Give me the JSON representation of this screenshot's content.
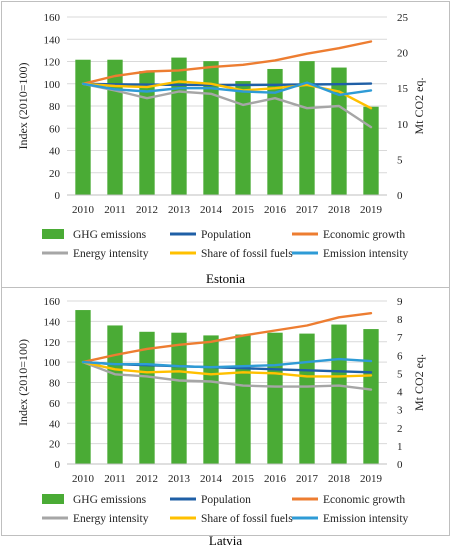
{
  "chart_data": [
    {
      "type": "bar",
      "title": "",
      "caption": "Estonia",
      "categories": [
        "2010",
        "2011",
        "2012",
        "2013",
        "2014",
        "2015",
        "2016",
        "2017",
        "2018",
        "2019"
      ],
      "ylabel_left": "Index (2010=100)",
      "ylabel_right": "Mt CO2 eq.",
      "ylim_left": [
        0,
        160
      ],
      "yticks_left": [
        "0",
        "20",
        "40",
        "60",
        "80",
        "100",
        "120",
        "140",
        "160"
      ],
      "ylim_right": [
        0,
        25
      ],
      "yticks_right": [
        "0",
        "5",
        "10",
        "15",
        "20",
        "25"
      ],
      "grid": true,
      "legend_position": "bottom",
      "bar_series": {
        "name": "GHG emissions",
        "axis": "right",
        "color": "#4aab35",
        "values": [
          19.0,
          19.0,
          17.4,
          19.3,
          18.8,
          16.0,
          17.7,
          18.8,
          17.9,
          12.4
        ]
      },
      "line_series": [
        {
          "name": "Population",
          "color": "#1f5fa6",
          "values": [
            100,
            99.5,
            99.2,
            99.0,
            98.8,
            98.9,
            99.1,
            99.3,
            99.6,
            100.1
          ]
        },
        {
          "name": "Economic growth",
          "color": "#ed7d31",
          "values": [
            100,
            107,
            111,
            112,
            115,
            117,
            121,
            127,
            132,
            138
          ]
        },
        {
          "name": "Energy intensity",
          "color": "#a6a6a6",
          "values": [
            100,
            94,
            87,
            93,
            91,
            81,
            87,
            78,
            80,
            61
          ]
        },
        {
          "name": "Share of fossil fuels",
          "color": "#ffc000",
          "values": [
            100,
            98,
            97,
            102,
            100,
            94,
            96,
            99,
            93,
            78
          ]
        },
        {
          "name": "Emission intensity",
          "color": "#2e9bd6",
          "values": [
            100,
            95,
            93,
            96,
            96,
            93,
            92,
            101,
            90,
            94
          ]
        }
      ]
    },
    {
      "type": "bar",
      "title": "",
      "caption": "Latvia",
      "categories": [
        "2010",
        "2011",
        "2012",
        "2013",
        "2014",
        "2015",
        "2016",
        "2017",
        "2018",
        "2019"
      ],
      "ylabel_left": "Index (2010=100)",
      "ylabel_right": "Mt CO2 eq.",
      "ylim_left": [
        0,
        160
      ],
      "yticks_left": [
        "0",
        "20",
        "40",
        "60",
        "80",
        "100",
        "120",
        "140",
        "160"
      ],
      "ylim_right": [
        0,
        9
      ],
      "yticks_right": [
        "0",
        "1",
        "2",
        "3",
        "4",
        "5",
        "6",
        "7",
        "8",
        "9"
      ],
      "grid": true,
      "legend_position": "bottom",
      "bar_series": {
        "name": "GHG emissions",
        "axis": "right",
        "color": "#4aab35",
        "values": [
          8.5,
          7.65,
          7.3,
          7.25,
          7.1,
          7.15,
          7.25,
          7.2,
          7.7,
          7.45
        ]
      },
      "line_series": [
        {
          "name": "Population",
          "color": "#1f5fa6",
          "values": [
            100,
            98,
            97,
            96,
            95,
            94,
            93,
            92,
            91,
            90
          ]
        },
        {
          "name": "Economic growth",
          "color": "#ed7d31",
          "values": [
            100,
            107,
            113,
            117,
            120,
            126,
            131,
            136,
            144,
            148
          ]
        },
        {
          "name": "Energy intensity",
          "color": "#a6a6a6",
          "values": [
            100,
            88,
            86,
            82,
            81,
            77,
            76,
            76,
            77,
            73
          ]
        },
        {
          "name": "Share of fossil fuels",
          "color": "#ffc000",
          "values": [
            100,
            93,
            90,
            91,
            88,
            90,
            89,
            86,
            86,
            87
          ]
        },
        {
          "name": "Emission intensity",
          "color": "#2e9bd6",
          "values": [
            100,
            98,
            98,
            96,
            95,
            96,
            97,
            100,
            103,
            101
          ]
        }
      ]
    }
  ]
}
